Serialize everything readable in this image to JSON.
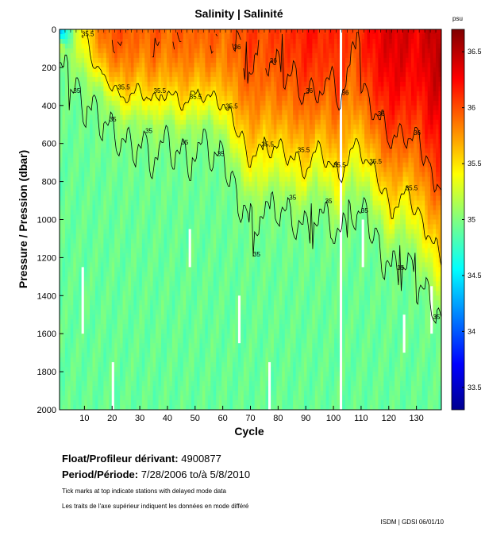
{
  "chart_data": {
    "type": "heatmap",
    "title": "Salinity | Salinité",
    "xlabel": "Cycle",
    "ylabel": "Pressure / Pression (dbar)",
    "x_ticks": [
      10,
      20,
      30,
      40,
      50,
      60,
      70,
      80,
      90,
      100,
      110,
      120,
      130
    ],
    "xlim": [
      1,
      139
    ],
    "y_ticks": [
      0,
      200,
      400,
      600,
      800,
      1000,
      1200,
      1400,
      1600,
      1800,
      2000
    ],
    "ylim": [
      0,
      2000
    ],
    "colorbar": {
      "unit": "psu",
      "ticks": [
        "36.5",
        "36",
        "35.5",
        "35",
        "34.5",
        "34",
        "33.5"
      ],
      "tick_values": [
        36.5,
        36,
        35.5,
        35,
        34.5,
        34,
        33.5
      ],
      "range": [
        33.3,
        36.7
      ]
    },
    "contour_labels": [
      "35",
      "35.5",
      "36"
    ],
    "contour_levels": [
      35,
      35.5,
      36
    ],
    "deep_value": 34.92,
    "surface_profile": {
      "cycles": [
        1,
        6,
        10,
        16,
        20,
        25,
        30,
        35,
        40,
        45,
        50,
        55,
        60,
        66,
        70,
        75,
        80,
        85,
        90,
        94,
        98,
        102,
        107,
        112,
        116,
        121,
        126,
        131,
        136,
        139
      ],
      "surface_salinity": [
        34.3,
        35.2,
        35.5,
        35.9,
        36.0,
        36.0,
        35.9,
        36.0,
        35.9,
        36.0,
        35.9,
        36.0,
        35.9,
        36.0,
        36.1,
        36.0,
        36.1,
        36.1,
        36.2,
        36.2,
        36.1,
        36.2,
        36.0,
        36.2,
        36.3,
        36.4,
        36.4,
        36.3,
        36.5,
        36.5
      ],
      "mixed_layer_depth_dbar": [
        80,
        150,
        250,
        330,
        420,
        500,
        460,
        520,
        470,
        540,
        500,
        480,
        560,
        760,
        900,
        860,
        820,
        880,
        940,
        800,
        900,
        1000,
        820,
        860,
        980,
        1150,
        1050,
        1200,
        1350,
        1450
      ]
    },
    "gaps": [
      {
        "cycle": 9,
        "from_dbar": 1250,
        "to_dbar": 1600
      },
      {
        "cycle": 20,
        "from_dbar": 1750,
        "to_dbar": 2000
      },
      {
        "cycle": 48,
        "from_dbar": 1050,
        "to_dbar": 1250
      },
      {
        "cycle": 66,
        "from_dbar": 1400,
        "to_dbar": 1650
      },
      {
        "cycle": 77,
        "from_dbar": 1750,
        "to_dbar": 2000
      },
      {
        "cycle": 103,
        "from_dbar": 0,
        "to_dbar": 2000
      },
      {
        "cycle": 111,
        "from_dbar": 1000,
        "to_dbar": 1250
      },
      {
        "cycle": 126,
        "from_dbar": 1500,
        "to_dbar": 1700
      },
      {
        "cycle": 136,
        "from_dbar": 1350,
        "to_dbar": 1600
      }
    ]
  },
  "float_label": "Float/Profileur dérivant:",
  "float_id": "4900877",
  "period_label": "Period/Période:",
  "period_value": "7/28/2006  to/à  5/8/2010",
  "note_en": "Tick marks at top indicate stations with delayed mode data",
  "note_fr": "Les traits de l'axe supérieur indiquent les données en mode différé",
  "footer": "ISDM | GDSI  06/01/10"
}
